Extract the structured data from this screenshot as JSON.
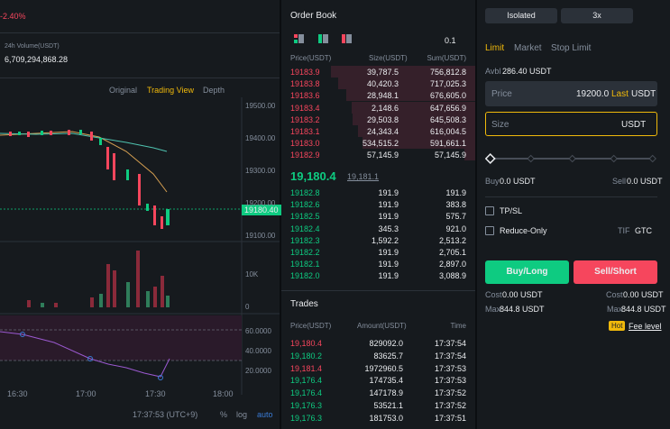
{
  "header": {
    "change": "-2.40%",
    "volume_label": "24h Volume(USDT)",
    "volume": "6,709,294,868.28"
  },
  "chart": {
    "tabs": [
      "Original",
      "Trading View",
      "Depth"
    ],
    "price_ticks": [
      "19500.00",
      "19400.00",
      "19300.00",
      "19200.00",
      "19100.00"
    ],
    "current_price": "19180.40",
    "volume_ticks": [
      "10K",
      "0"
    ],
    "rsi_ticks": [
      "60.0000",
      "40.0000",
      "20.0000"
    ],
    "time_ticks": [
      "16:30",
      "17:00",
      "17:30",
      "18:00"
    ],
    "footer": {
      "time": "17:37:53 (UTC+9)",
      "percent": "%",
      "log": "log",
      "auto": "auto"
    }
  },
  "order_book": {
    "title": "Order Book",
    "precision": "0.1",
    "headers": [
      "Price(USDT)",
      "Size(USDT)",
      "Sum(USDT)"
    ],
    "asks": [
      [
        "19183.9",
        "39,787.5",
        "756,812.8"
      ],
      [
        "19183.8",
        "40,420.3",
        "717,025.3"
      ],
      [
        "19183.6",
        "28,948.1",
        "676,605.0"
      ],
      [
        "19183.4",
        "2,148.6",
        "647,656.9"
      ],
      [
        "19183.2",
        "29,503.8",
        "645,508.3"
      ],
      [
        "19183.1",
        "24,343.4",
        "616,004.5"
      ],
      [
        "19183.0",
        "534,515.2",
        "591,661.1"
      ],
      [
        "19182.9",
        "57,145.9",
        "57,145.9"
      ]
    ],
    "last_price": "19,180.4",
    "mark_price": "19,181.1",
    "bids": [
      [
        "19182.8",
        "191.9",
        "191.9"
      ],
      [
        "19182.6",
        "191.9",
        "383.8"
      ],
      [
        "19182.5",
        "191.9",
        "575.7"
      ],
      [
        "19182.4",
        "345.3",
        "921.0"
      ],
      [
        "19182.3",
        "1,592.2",
        "2,513.2"
      ],
      [
        "19182.2",
        "191.9",
        "2,705.1"
      ],
      [
        "19182.1",
        "191.9",
        "2,897.0"
      ],
      [
        "19182.0",
        "191.9",
        "3,088.9"
      ]
    ]
  },
  "trades": {
    "title": "Trades",
    "headers": [
      "Price(USDT)",
      "Amount(USDT)",
      "Time"
    ],
    "rows": [
      {
        "price": "19,180.4",
        "amount": "829092.0",
        "time": "17:37:54",
        "color": "#f6465d"
      },
      {
        "price": "19,180.2",
        "amount": "83625.7",
        "time": "17:37:54",
        "color": "#0ecb81"
      },
      {
        "price": "19,181.4",
        "amount": "1972960.5",
        "time": "17:37:53",
        "color": "#f6465d"
      },
      {
        "price": "19,176.4",
        "amount": "174735.4",
        "time": "17:37:53",
        "color": "#0ecb81"
      },
      {
        "price": "19,176.4",
        "amount": "147178.9",
        "time": "17:37:52",
        "color": "#0ecb81"
      },
      {
        "price": "19,176.3",
        "amount": "53521.1",
        "time": "17:37:52",
        "color": "#0ecb81"
      },
      {
        "price": "19,176.3",
        "amount": "181753.0",
        "time": "17:37:51",
        "color": "#0ecb81"
      }
    ]
  },
  "trade_panel": {
    "margin_mode": "Isolated",
    "leverage": "3x",
    "tabs": [
      "Limit",
      "Market",
      "Stop Limit"
    ],
    "avbl_label": "Avbl",
    "avbl": "286.40 USDT",
    "price_label": "Price",
    "price": "19200.0",
    "last": "Last",
    "price_unit": "USDT",
    "size_label": "Size",
    "size_unit": "USDT",
    "buy_label": "Buy",
    "buy": "0.0 USDT",
    "sell_label": "Sell",
    "sell": "0.0 USDT",
    "tpsl": "TP/SL",
    "reduce_only": "Reduce-Only",
    "tif_label": "TIF",
    "tif": "GTC",
    "buy_button": "Buy/Long",
    "sell_button": "Sell/Short",
    "cost_label": "Cost",
    "cost_buy": "0.00 USDT",
    "cost_sell": "0.00 USDT",
    "max_label": "Max",
    "max_buy": "844.8 USDT",
    "max_sell": "844.8 USDT",
    "hot": "Hot",
    "fee_level": "Fee level"
  }
}
